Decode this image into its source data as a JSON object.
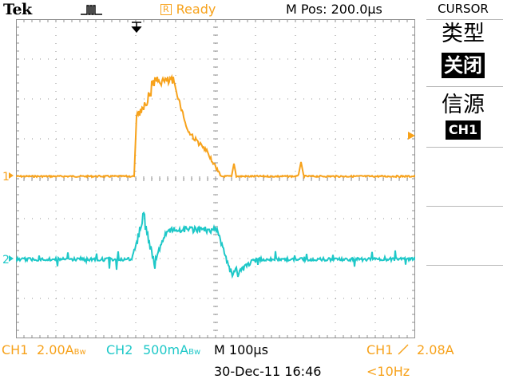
{
  "header": {
    "brand": "Tek",
    "trigger_status_icon": "trigger-pulse-icon",
    "acq_indicator": "R",
    "acq_status": "Ready",
    "horizontal_position": "M Pos: 200.0µs"
  },
  "menu": {
    "title": "CURSOR",
    "type_label": "类型",
    "type_value": "关闭",
    "source_label": "信源",
    "source_value": "CH1"
  },
  "channels": [
    {
      "id": "CH1",
      "marker": "1",
      "color": "#f7a21b"
    },
    {
      "id": "CH2",
      "marker": "2",
      "color": "#1ec8c8"
    }
  ],
  "readout": {
    "ch1_label": "CH1",
    "ch1_scale": "2.00A",
    "ch1_bw": "Bw",
    "ch2_label": "CH2",
    "ch2_scale": "500mA",
    "ch2_bw": "Bw",
    "timebase": "M 100µs",
    "trigger_source": "CH1",
    "trigger_level": "2.08A",
    "date_time": "30-Dec-11 16:46",
    "frequency": "<10Hz"
  },
  "colors": {
    "ch1": "#f7a21b",
    "ch2": "#1ec8c8",
    "graticule": "#909090"
  }
}
